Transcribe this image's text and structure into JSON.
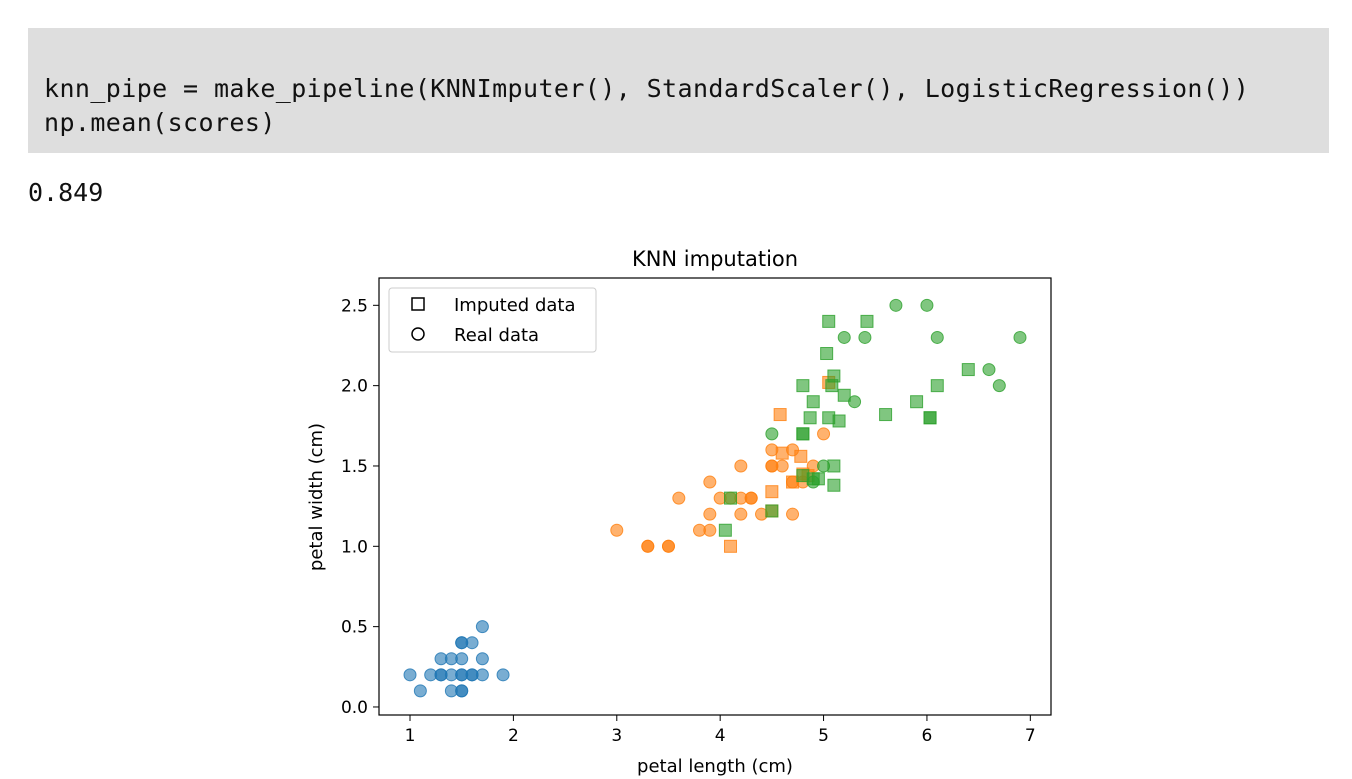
{
  "code": {
    "lines": [
      "knn_pipe = make_pipeline(KNNImputer(), StandardScaler(), LogisticRegression())",
      "np.mean(scores)"
    ]
  },
  "output": {
    "value": "0.849"
  },
  "chart_data": {
    "type": "scatter",
    "title": "KNN imputation",
    "xlabel": "petal length (cm)",
    "ylabel": "petal width (cm)",
    "xlim": [
      0.7,
      7.2
    ],
    "ylim": [
      -0.05,
      2.67
    ],
    "xticks": [
      "1",
      "2",
      "3",
      "4",
      "5",
      "6",
      "7"
    ],
    "yticks": [
      "0.0",
      "0.5",
      "1.0",
      "1.5",
      "2.0",
      "2.5"
    ],
    "legend": {
      "placement": "top-left",
      "entries": [
        {
          "label": "Imputed data",
          "marker": "square"
        },
        {
          "label": "Real data",
          "marker": "circle"
        }
      ]
    },
    "colors": {
      "class0": "#1f77b4",
      "class1": "#ff7f0e",
      "class2": "#2ca02c"
    },
    "series": [
      {
        "class": 0,
        "marker": "circle",
        "points": [
          [
            1.0,
            0.2
          ],
          [
            1.1,
            0.1
          ],
          [
            1.2,
            0.2
          ],
          [
            1.3,
            0.2
          ],
          [
            1.3,
            0.3
          ],
          [
            1.4,
            0.1
          ],
          [
            1.4,
            0.2
          ],
          [
            1.4,
            0.3
          ],
          [
            1.5,
            0.1
          ],
          [
            1.5,
            0.2
          ],
          [
            1.5,
            0.3
          ],
          [
            1.5,
            0.4
          ],
          [
            1.6,
            0.2
          ],
          [
            1.6,
            0.4
          ],
          [
            1.7,
            0.2
          ],
          [
            1.7,
            0.3
          ],
          [
            1.7,
            0.5
          ],
          [
            1.9,
            0.2
          ],
          [
            1.3,
            0.2
          ],
          [
            1.5,
            0.2
          ],
          [
            1.5,
            0.4
          ],
          [
            1.6,
            0.2
          ],
          [
            1.5,
            0.1
          ]
        ]
      },
      {
        "class": 1,
        "marker": "circle",
        "points": [
          [
            3.0,
            1.1
          ],
          [
            3.3,
            1.0
          ],
          [
            3.5,
            1.0
          ],
          [
            3.6,
            1.3
          ],
          [
            3.8,
            1.1
          ],
          [
            3.9,
            1.1
          ],
          [
            3.9,
            1.2
          ],
          [
            3.9,
            1.4
          ],
          [
            4.0,
            1.3
          ],
          [
            4.1,
            1.3
          ],
          [
            4.2,
            1.2
          ],
          [
            4.2,
            1.3
          ],
          [
            4.2,
            1.5
          ],
          [
            4.3,
            1.3
          ],
          [
            4.4,
            1.2
          ],
          [
            4.5,
            1.5
          ],
          [
            4.5,
            1.6
          ],
          [
            4.6,
            1.5
          ],
          [
            4.7,
            1.4
          ],
          [
            4.7,
            1.2
          ],
          [
            4.7,
            1.6
          ],
          [
            4.8,
            1.4
          ],
          [
            4.9,
            1.5
          ],
          [
            5.0,
            1.7
          ],
          [
            3.3,
            1.0
          ],
          [
            3.5,
            1.0
          ],
          [
            4.3,
            1.3
          ],
          [
            4.5,
            1.5
          ]
        ]
      },
      {
        "class": 1,
        "marker": "square",
        "points": [
          [
            4.1,
            1.0
          ],
          [
            4.5,
            1.34
          ],
          [
            4.5,
            1.22
          ],
          [
            4.58,
            1.82
          ],
          [
            4.6,
            1.58
          ],
          [
            4.7,
            1.4
          ],
          [
            4.78,
            1.56
          ],
          [
            4.8,
            1.45
          ],
          [
            5.05,
            2.02
          ],
          [
            4.85,
            1.44
          ]
        ]
      },
      {
        "class": 2,
        "marker": "circle",
        "points": [
          [
            4.5,
            1.7
          ],
          [
            4.9,
            1.4
          ],
          [
            5.0,
            1.5
          ],
          [
            5.2,
            2.3
          ],
          [
            5.3,
            1.9
          ],
          [
            5.4,
            2.3
          ],
          [
            5.7,
            2.5
          ],
          [
            6.0,
            2.5
          ],
          [
            6.1,
            2.3
          ],
          [
            6.6,
            2.1
          ],
          [
            6.7,
            2.0
          ],
          [
            6.9,
            2.3
          ]
        ]
      },
      {
        "class": 2,
        "marker": "square",
        "points": [
          [
            4.05,
            1.1
          ],
          [
            4.1,
            1.3
          ],
          [
            4.5,
            1.22
          ],
          [
            4.8,
            1.7
          ],
          [
            4.8,
            1.7
          ],
          [
            4.8,
            1.44
          ],
          [
            4.8,
            2.0
          ],
          [
            4.87,
            1.8
          ],
          [
            4.9,
            1.9
          ],
          [
            4.9,
            1.42
          ],
          [
            4.95,
            1.42
          ],
          [
            5.03,
            2.2
          ],
          [
            5.05,
            2.4
          ],
          [
            5.05,
            1.8
          ],
          [
            5.1,
            2.06
          ],
          [
            5.08,
            2.0
          ],
          [
            5.1,
            1.5
          ],
          [
            5.1,
            1.38
          ],
          [
            5.15,
            1.78
          ],
          [
            5.2,
            1.94
          ],
          [
            5.42,
            2.4
          ],
          [
            5.6,
            1.82
          ],
          [
            5.9,
            1.9
          ],
          [
            6.03,
            1.8
          ],
          [
            6.03,
            1.8
          ],
          [
            6.1,
            2.0
          ],
          [
            6.4,
            2.1
          ]
        ]
      }
    ]
  }
}
